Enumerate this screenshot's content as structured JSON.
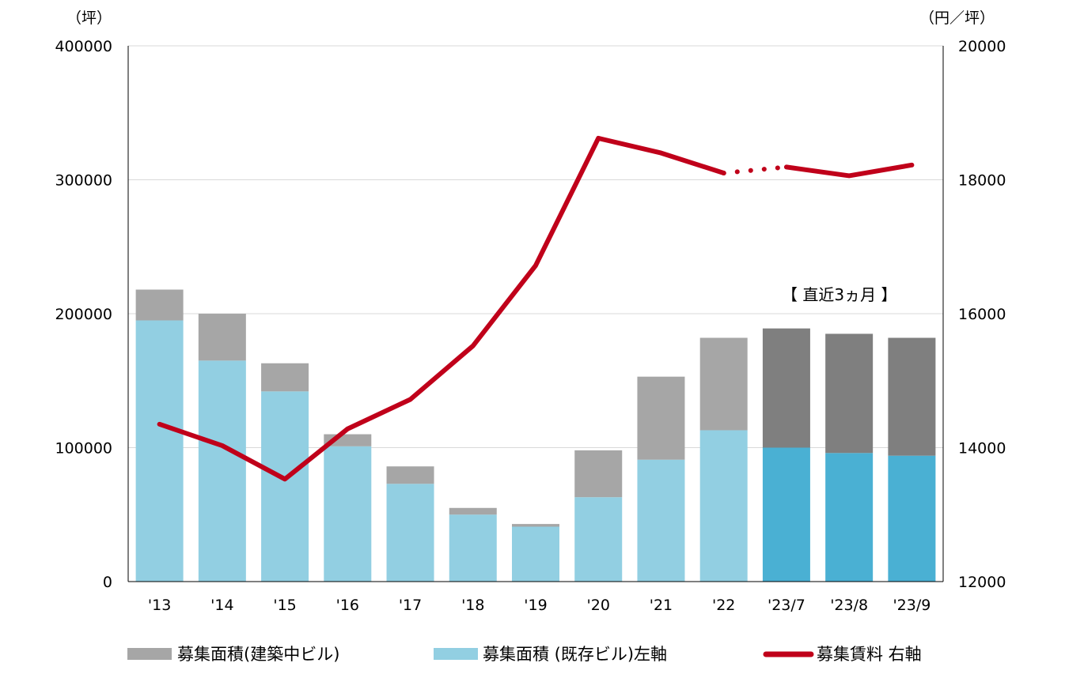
{
  "chart_data": {
    "type": "bar",
    "stacked": true,
    "categories": [
      "'13",
      "'14",
      "'15",
      "'16",
      "'17",
      "'18",
      "'19",
      "'20",
      "'21",
      "'22",
      "'23/7",
      "'23/8",
      "'23/9"
    ],
    "series": [
      {
        "name": "募集面積 (既存ビル)左軸",
        "axis": "left",
        "type": "bar",
        "color": "#92cfe2",
        "highlight_color": "#4ab0d3",
        "values": [
          195000,
          165000,
          142000,
          101000,
          73000,
          50000,
          41000,
          63000,
          91000,
          113000,
          100000,
          96000,
          94000
        ]
      },
      {
        "name": "募集面積(建築中ビル)",
        "axis": "left",
        "type": "bar",
        "color": "#a6a6a6",
        "highlight_color": "#7f7f7f",
        "values": [
          23000,
          35000,
          21000,
          9000,
          13000,
          5000,
          2000,
          35000,
          62000,
          69000,
          89000,
          89000,
          88000
        ]
      },
      {
        "name": "募集賃料 右軸",
        "axis": "right",
        "type": "line",
        "color": "#c0001a",
        "values": [
          14350,
          14030,
          13530,
          14280,
          14720,
          15520,
          16720,
          18620,
          18400,
          18100,
          18190,
          18060,
          18220
        ],
        "dotted_segment": [
          "'22",
          "'23/7"
        ]
      }
    ],
    "highlight_from_index": 10,
    "y_left": {
      "unit": "（坪）",
      "ylim": [
        0,
        400000
      ],
      "ticks": [
        "0",
        "100000",
        "200000",
        "300000",
        "400000"
      ]
    },
    "y_right": {
      "unit": "（円／坪）",
      "ylim": [
        12000,
        20000
      ],
      "ticks": [
        "12000",
        "14000",
        "16000",
        "18000",
        "20000"
      ]
    },
    "annotation": "【 直近3ヵ月 】",
    "grid": true,
    "legend_position": "bottom",
    "legend": [
      {
        "label": "募集面積(建築中ビル)",
        "kind": "bar",
        "color": "#a6a6a6"
      },
      {
        "label": "募集面積 (既存ビル)左軸",
        "kind": "bar",
        "color": "#92cfe2"
      },
      {
        "label": "募集賃料 右軸",
        "kind": "line",
        "color": "#c0001a"
      }
    ]
  }
}
